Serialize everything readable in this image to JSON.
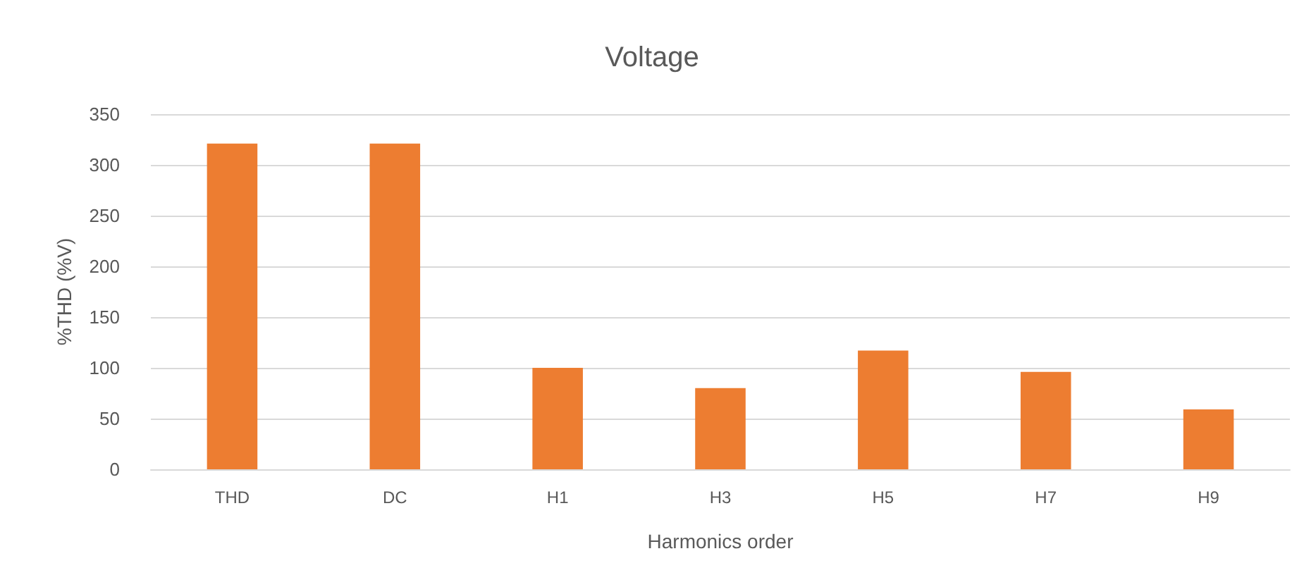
{
  "chart_data": {
    "type": "bar",
    "title": "Voltage",
    "xlabel": "Harmonics order",
    "ylabel": "%THD (%V)",
    "categories": [
      "THD",
      "DC",
      "H1",
      "H3",
      "H5",
      "H7",
      "H9"
    ],
    "values": [
      321,
      321,
      100,
      80,
      117,
      96,
      59
    ],
    "color": "#ed7d31",
    "ylim": [
      0,
      350
    ],
    "yticks": [
      0,
      50,
      100,
      150,
      200,
      250,
      300,
      350
    ],
    "grid": "y"
  }
}
